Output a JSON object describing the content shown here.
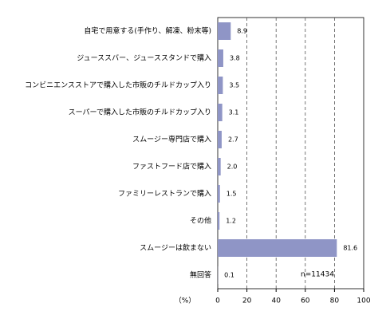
{
  "chart_data": {
    "type": "hbar",
    "categories": [
      "自宅で用意する(手作り、解凍、粉末等)",
      "ジューススバー、ジューススタンドで購入",
      "コンビニエンスストアで購入した市販のチルドカップ入り",
      "スーパーで購入した市販のチルドカップ入り",
      "スムージー専門店で購入",
      "ファストフード店で購入",
      "ファミリーレストランで購入",
      "その他",
      "スムージーは飲まない",
      "無回答"
    ],
    "values": [
      8.9,
      3.8,
      3.5,
      3.1,
      2.7,
      2.0,
      1.5,
      1.2,
      81.6,
      0.1
    ],
    "value_labels": [
      "8.9",
      "3.8",
      "3.5",
      "3.1",
      "2.7",
      "2.0",
      "1.5",
      "1.2",
      "81.6",
      "0.1"
    ],
    "color": "#8f95c6",
    "xlim": [
      0,
      100
    ],
    "xticks": [
      0,
      20,
      40,
      60,
      80,
      100
    ],
    "grid": true,
    "xlabel": "（%）",
    "annotation": "n=11434"
  }
}
